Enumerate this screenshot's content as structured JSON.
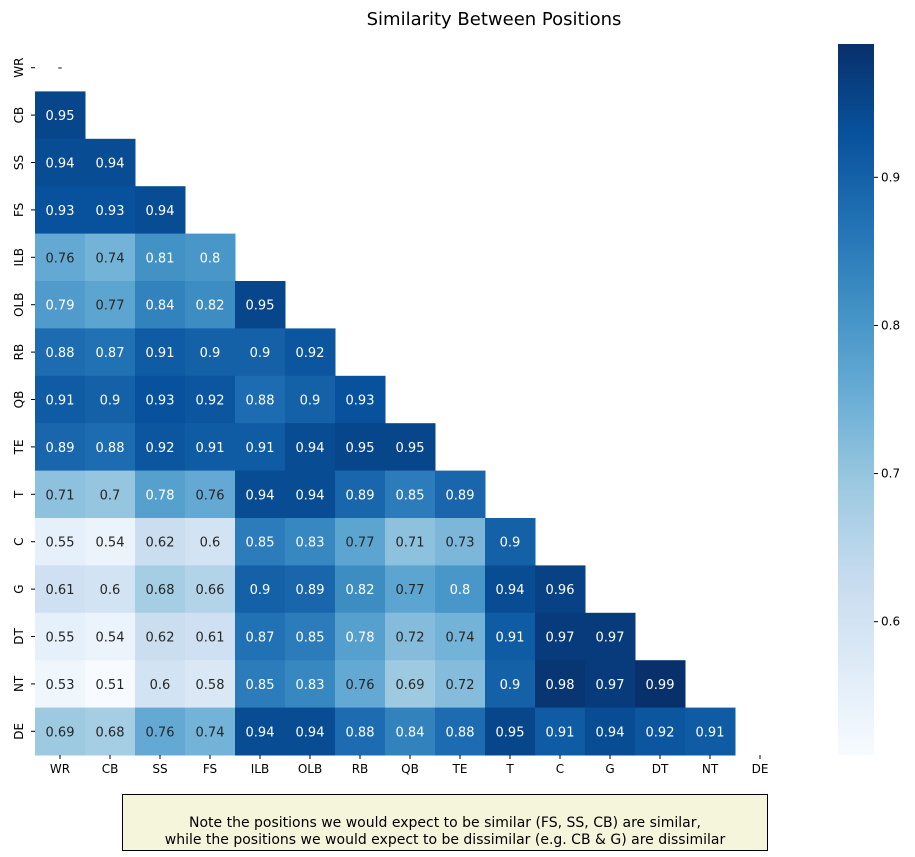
{
  "chart_data": {
    "type": "heatmap",
    "title": "Similarity Between Positions",
    "xlabel": "",
    "ylabel": "",
    "labels": [
      "WR",
      "CB",
      "SS",
      "FS",
      "ILB",
      "OLB",
      "RB",
      "QB",
      "TE",
      "T",
      "C",
      "G",
      "DT",
      "NT",
      "DE"
    ],
    "mask": "upper-triangle-including-diagonal",
    "values": [
      [],
      [
        0.95
      ],
      [
        0.94,
        0.94
      ],
      [
        0.93,
        0.93,
        0.94
      ],
      [
        0.76,
        0.74,
        0.81,
        0.8
      ],
      [
        0.79,
        0.77,
        0.84,
        0.82,
        0.95
      ],
      [
        0.88,
        0.87,
        0.91,
        0.9,
        0.9,
        0.92
      ],
      [
        0.91,
        0.9,
        0.93,
        0.92,
        0.88,
        0.9,
        0.93
      ],
      [
        0.89,
        0.88,
        0.92,
        0.91,
        0.91,
        0.94,
        0.95,
        0.95
      ],
      [
        0.71,
        0.7,
        0.78,
        0.76,
        0.94,
        0.94,
        0.89,
        0.85,
        0.89
      ],
      [
        0.55,
        0.54,
        0.62,
        0.6,
        0.85,
        0.83,
        0.77,
        0.71,
        0.73,
        0.9
      ],
      [
        0.61,
        0.6,
        0.68,
        0.66,
        0.9,
        0.89,
        0.82,
        0.77,
        0.8,
        0.94,
        0.96
      ],
      [
        0.55,
        0.54,
        0.62,
        0.61,
        0.87,
        0.85,
        0.78,
        0.72,
        0.74,
        0.91,
        0.97,
        0.97
      ],
      [
        0.53,
        0.51,
        0.6,
        0.58,
        0.85,
        0.83,
        0.76,
        0.69,
        0.72,
        0.9,
        0.98,
        0.97,
        0.99
      ],
      [
        0.69,
        0.68,
        0.76,
        0.74,
        0.94,
        0.94,
        0.88,
        0.84,
        0.88,
        0.95,
        0.91,
        0.94,
        0.92,
        0.91
      ]
    ],
    "colorscale": "Blues",
    "vmin": 0.51,
    "vmax": 0.99,
    "colorbar_ticks": [
      {
        "value": 0.6,
        "label": "0.6"
      },
      {
        "value": 0.7,
        "label": "0.7"
      },
      {
        "value": 0.8,
        "label": "0.8"
      },
      {
        "value": 0.9,
        "label": "0.9"
      }
    ],
    "empty_diagonal_label": "-"
  },
  "note": {
    "line1": "Note the positions we would expect to be similar (FS, SS, CB) are similar,",
    "line2": "while the positions we would expect to be dissimilar (e.g. CB & G) are dissimilar"
  }
}
